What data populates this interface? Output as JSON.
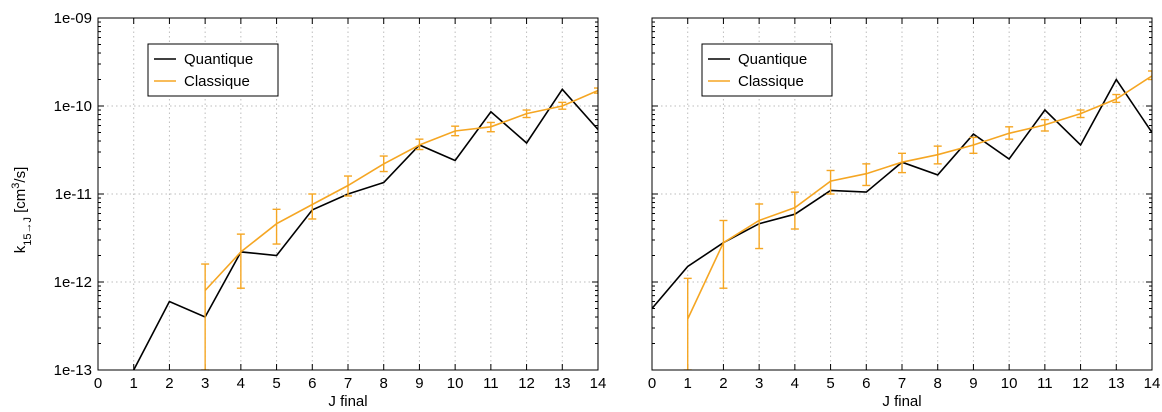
{
  "colors": {
    "quantique": "#000000",
    "classique": "#f5a623",
    "grid": "#bdbdbd",
    "axis": "#000000"
  },
  "y_axis_label": {
    "k": "k",
    "sub": "15→J",
    "unit_open": " [cm",
    "sup": "3",
    "unit_close": "/s]"
  },
  "chart_data": [
    {
      "type": "line",
      "scale_y": "log",
      "title": "",
      "xlabel": "J final",
      "ylabel": "k15→J [cm3/s]",
      "xlim": [
        0,
        14
      ],
      "ylim": [
        1e-13,
        1e-09
      ],
      "grid": true,
      "legend": {
        "position": "top-left",
        "entries": [
          "Quantique",
          "Classique"
        ]
      },
      "x_ticks": [
        "0",
        "1",
        "2",
        "3",
        "4",
        "5",
        "6",
        "7",
        "8",
        "9",
        "10",
        "11",
        "12",
        "13",
        "14"
      ],
      "y_ticks": [
        {
          "value": 1e-13,
          "label": "1e-13"
        },
        {
          "value": 1e-12,
          "label": "1e-12"
        },
        {
          "value": 1e-11,
          "label": "1e-11"
        },
        {
          "value": 1e-10,
          "label": "1e-10"
        },
        {
          "value": 1e-09,
          "label": "1e-09"
        }
      ],
      "series": [
        {
          "name": "Quantique",
          "x": [
            1,
            2,
            3,
            4,
            5,
            6,
            7,
            8,
            9,
            10,
            11,
            12,
            13,
            14
          ],
          "y": [
            1e-13,
            6e-13,
            4e-13,
            2.2e-12,
            2e-12,
            6.6e-12,
            1e-11,
            1.35e-11,
            3.6e-11,
            2.4e-11,
            8.6e-11,
            3.8e-11,
            1.55e-10,
            5.4e-11
          ]
        },
        {
          "name": "Classique",
          "x": [
            3,
            4,
            5,
            6,
            7,
            8,
            9,
            10,
            11,
            12,
            13,
            14
          ],
          "y": [
            8e-13,
            2.2e-12,
            4.6e-12,
            7.6e-12,
            1.25e-11,
            2.2e-11,
            3.6e-11,
            5.2e-11,
            5.8e-11,
            8.2e-11,
            1e-10,
            1.5e-10
          ],
          "err_low": [
            1e-13,
            8.5e-13,
            2.7e-12,
            5.2e-12,
            9.5e-12,
            1.8e-11,
            3.2e-11,
            4.6e-11,
            5.1e-11,
            7.4e-11,
            9.2e-11,
            1.4e-10
          ],
          "err_high": [
            1.6e-12,
            3.5e-12,
            6.7e-12,
            1e-11,
            1.6e-11,
            2.7e-11,
            4.2e-11,
            5.9e-11,
            6.5e-11,
            9e-11,
            1.1e-10,
            1.6e-10
          ]
        }
      ]
    },
    {
      "type": "line",
      "scale_y": "log",
      "title": "",
      "xlabel": "J final",
      "ylabel": "",
      "xlim": [
        0,
        14
      ],
      "ylim": [
        1e-13,
        1e-09
      ],
      "grid": true,
      "legend": {
        "position": "top-left",
        "entries": [
          "Quantique",
          "Classique"
        ]
      },
      "x_ticks": [
        "0",
        "1",
        "2",
        "3",
        "4",
        "5",
        "6",
        "7",
        "8",
        "9",
        "10",
        "11",
        "12",
        "13",
        "14"
      ],
      "series": [
        {
          "name": "Quantique",
          "x": [
            0,
            1,
            2,
            3,
            4,
            5,
            6,
            7,
            8,
            9,
            10,
            11,
            12,
            13,
            14
          ],
          "y": [
            5e-13,
            1.5e-12,
            2.8e-12,
            4.6e-12,
            5.9e-12,
            1.1e-11,
            1.05e-11,
            2.3e-11,
            1.65e-11,
            4.8e-11,
            2.5e-11,
            9e-11,
            3.6e-11,
            2e-10,
            5e-11
          ]
        },
        {
          "name": "Classique",
          "x": [
            1,
            2,
            3,
            4,
            5,
            6,
            7,
            8,
            9,
            10,
            11,
            12,
            13,
            14
          ],
          "y": [
            3.8e-13,
            2.8e-12,
            5e-12,
            7e-12,
            1.4e-11,
            1.7e-11,
            2.3e-11,
            2.8e-11,
            3.6e-11,
            4.9e-11,
            6.1e-11,
            8.2e-11,
            1.2e-10,
            2.2e-10
          ],
          "err_low": [
            1e-13,
            8.5e-13,
            2.4e-12,
            4e-12,
            1e-11,
            1.25e-11,
            1.75e-11,
            2.2e-11,
            2.9e-11,
            4.2e-11,
            5.2e-11,
            7.4e-11,
            1.1e-10,
            2e-10
          ],
          "err_high": [
            1.1e-12,
            5e-12,
            7.7e-12,
            1.05e-11,
            1.85e-11,
            2.2e-11,
            2.9e-11,
            3.5e-11,
            4.4e-11,
            5.8e-11,
            7e-11,
            9e-11,
            1.35e-10,
            2.5e-10
          ]
        }
      ]
    }
  ]
}
